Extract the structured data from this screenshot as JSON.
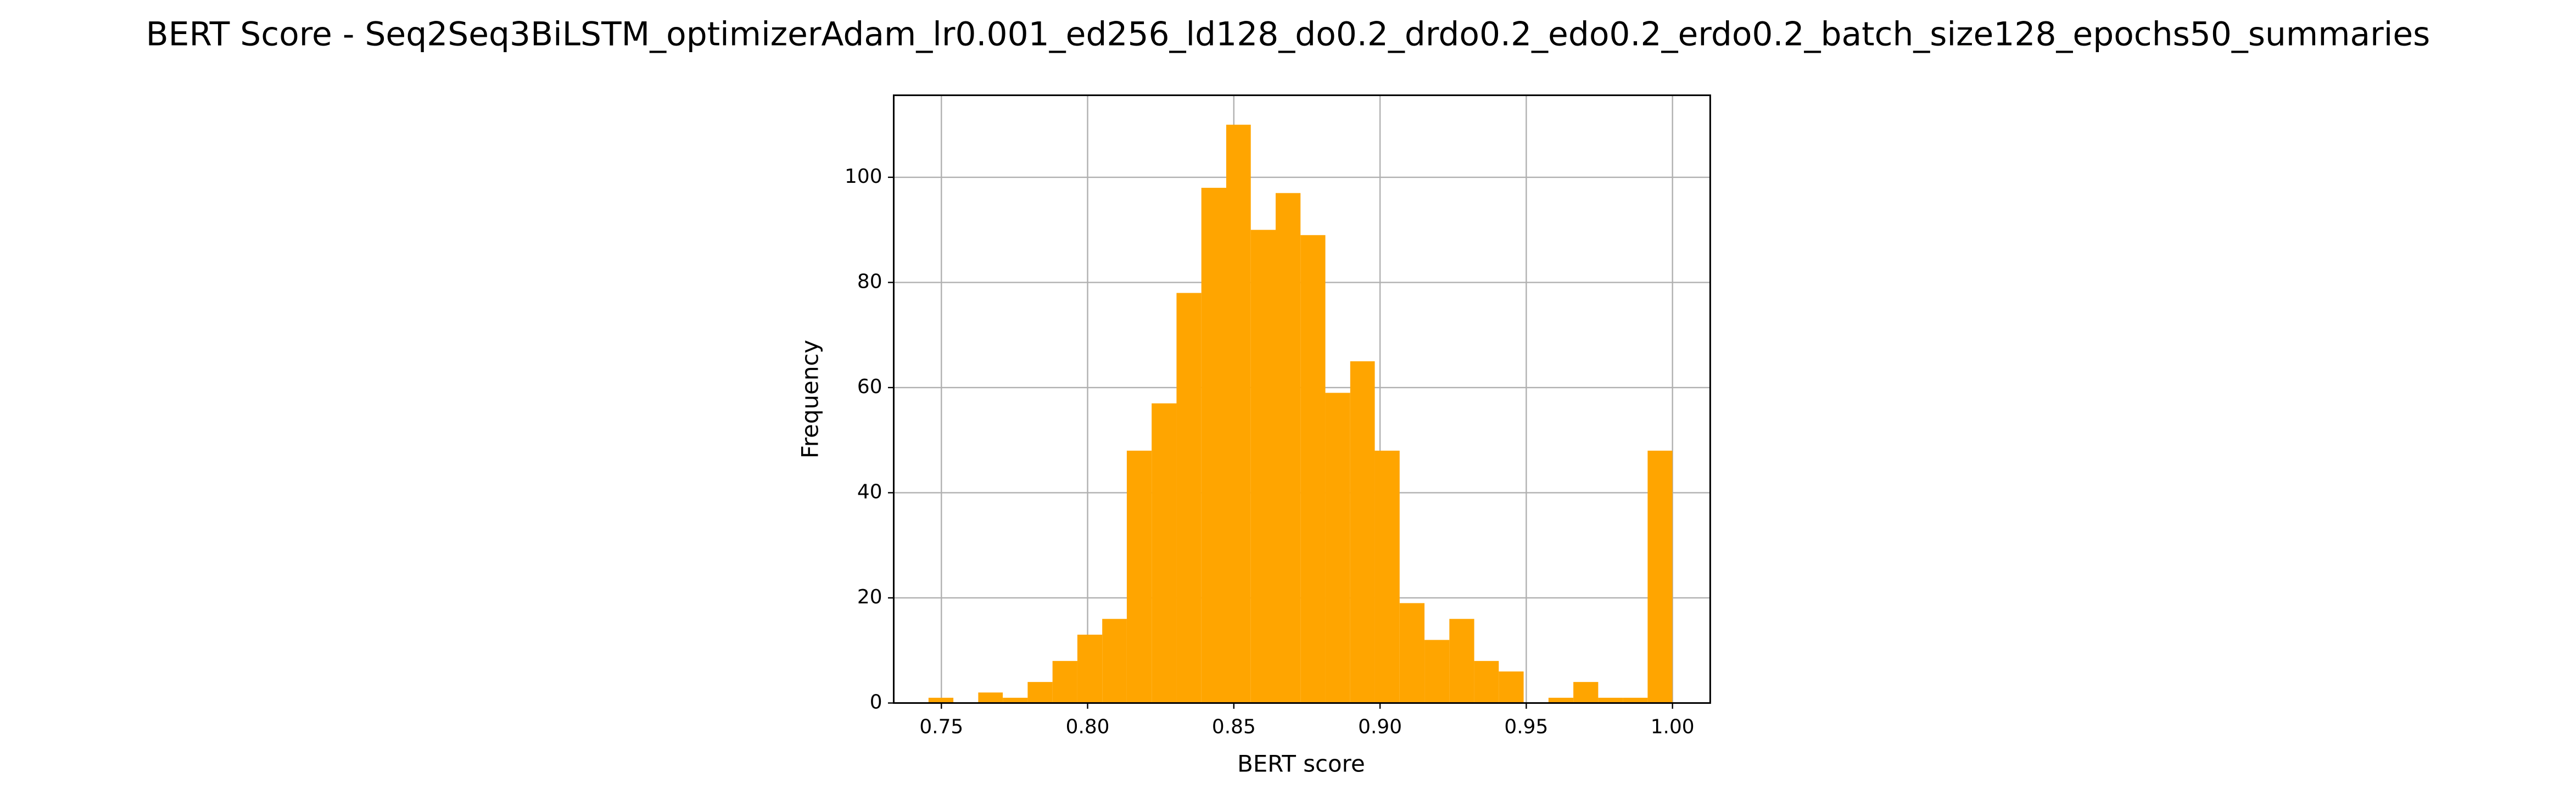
{
  "chart_data": {
    "type": "histogram",
    "title": "BERT Score - Seq2Seq3BiLSTM_optimizerAdam_lr0.001_ed256_ld128_do0.2_drdo0.2_edo0.2_erdo0.2_batch_size128_epochs50_summaries",
    "x_label": "BERT score",
    "y_label": "Frequency",
    "bins": [
      0.7456,
      0.7541,
      0.7626,
      0.771,
      0.7795,
      0.788,
      0.7965,
      0.805,
      0.8134,
      0.8219,
      0.8304,
      0.8389,
      0.8474,
      0.8558,
      0.8643,
      0.8728,
      0.8813,
      0.8898,
      0.8982,
      0.9067,
      0.9152,
      0.9237,
      0.9322,
      0.9406,
      0.9491,
      0.9576,
      0.9661,
      0.9746,
      0.983,
      0.9915,
      1.0
    ],
    "values": [
      1,
      0,
      2,
      1,
      4,
      8,
      13,
      16,
      48,
      57,
      78,
      98,
      110,
      90,
      97,
      89,
      59,
      65,
      48,
      19,
      12,
      16,
      8,
      6,
      0,
      1,
      4,
      1,
      1,
      48
    ],
    "color": "#ffa500",
    "xlim": [
      0.7337,
      1.0129
    ],
    "ylim": [
      0,
      115.6
    ],
    "xticks": [
      {
        "value": 0.75,
        "label": "0.75"
      },
      {
        "value": 0.8,
        "label": "0.80"
      },
      {
        "value": 0.85,
        "label": "0.85"
      },
      {
        "value": 0.9,
        "label": "0.90"
      },
      {
        "value": 0.95,
        "label": "0.95"
      },
      {
        "value": 1.0,
        "label": "1.00"
      }
    ],
    "yticks": [
      0,
      20,
      40,
      60,
      80,
      100
    ],
    "grid": true
  }
}
